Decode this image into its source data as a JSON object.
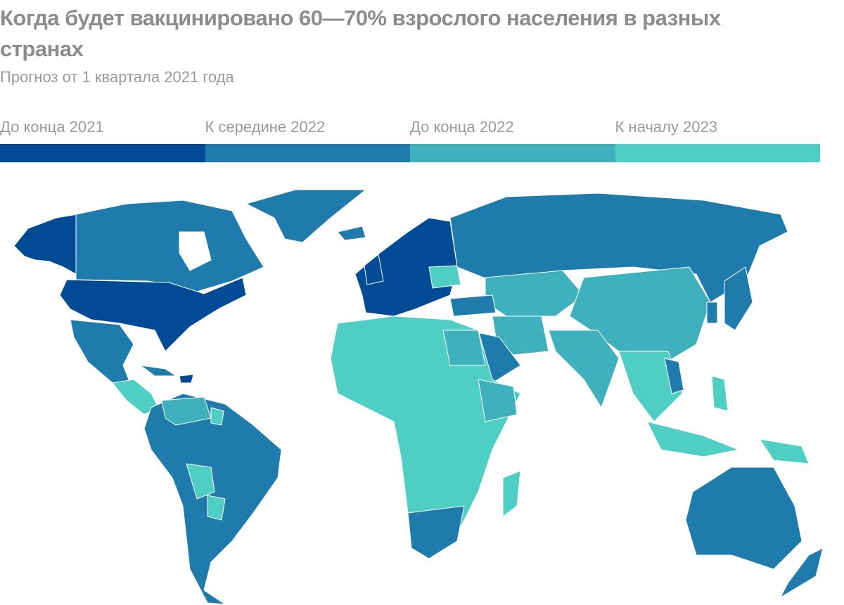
{
  "title": "Когда будет вакцинировано 60—70% взрослого населения в разных странах",
  "subtitle": "Прогноз от 1 квартала 2021 года",
  "legend": [
    {
      "label": "До конца 2021",
      "color": "#004a96"
    },
    {
      "label": "К середине 2022",
      "color": "#1f7bab"
    },
    {
      "label": "До конца 2022",
      "color": "#3fb1bc"
    },
    {
      "label": "К началу 2023",
      "color": "#4fcfc4"
    }
  ]
}
